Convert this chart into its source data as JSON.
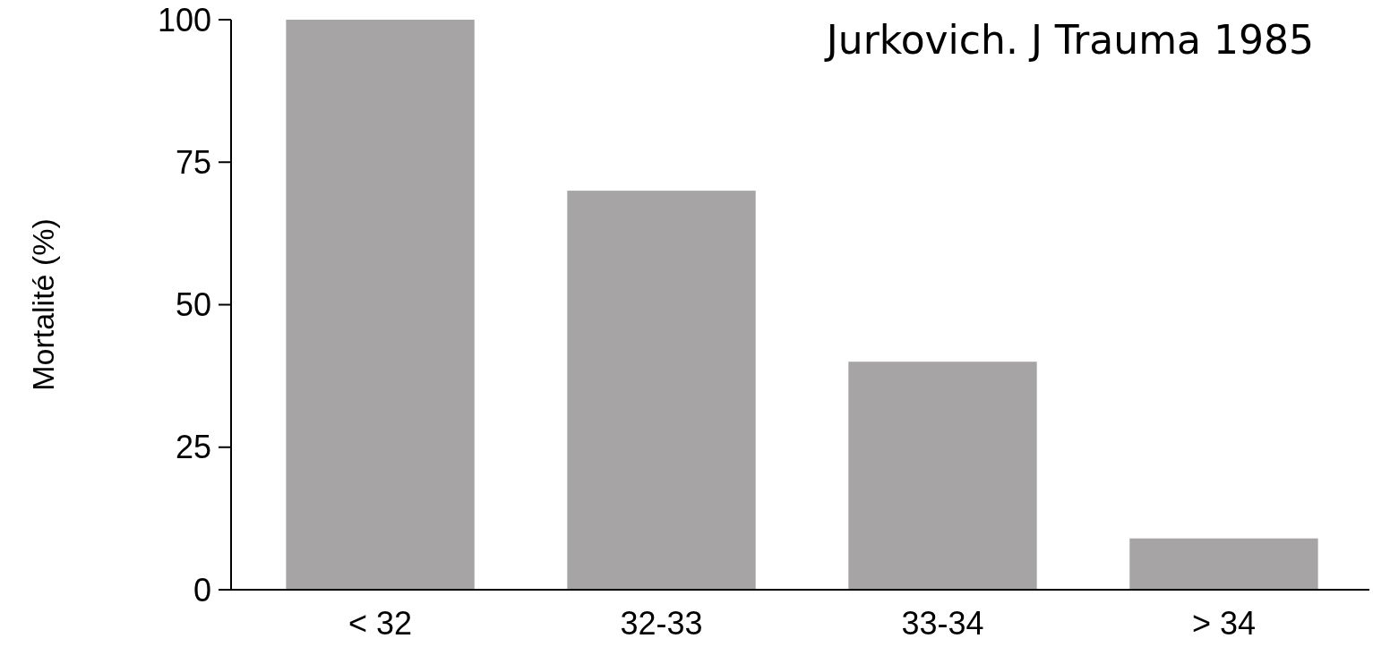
{
  "chart_data": {
    "type": "bar",
    "ylabel": "Mortalité (%)",
    "categories": [
      "< 32",
      "32-33",
      "33-34",
      "> 34"
    ],
    "values": [
      100,
      70,
      40,
      9
    ],
    "color": "#a6a4a5",
    "ylim": [
      0,
      100
    ],
    "yticks": [
      0,
      25,
      50,
      75,
      100
    ],
    "annotations": [
      "Jurkovich. J Trauma 1985"
    ]
  }
}
